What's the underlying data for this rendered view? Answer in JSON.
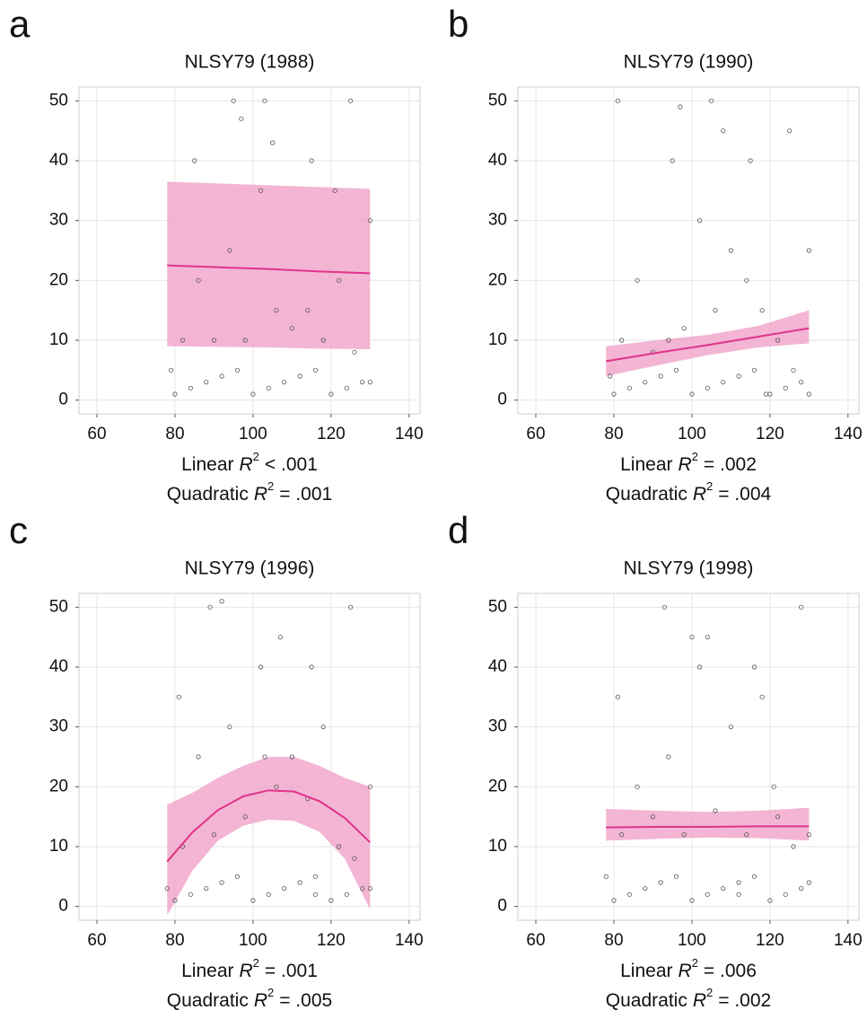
{
  "chart_data": [
    {
      "type": "scatter",
      "panel_label": "a",
      "title": "NLSY79 (1988)",
      "x": [
        80,
        84,
        88,
        92,
        96,
        100,
        104,
        108,
        112,
        116,
        120,
        124,
        128,
        82,
        90,
        98,
        106,
        114,
        122,
        130,
        79,
        86,
        94,
        102,
        110,
        118,
        126,
        85,
        95,
        105,
        115,
        125,
        97,
        103,
        121,
        130
      ],
      "values": [
        1,
        2,
        3,
        4,
        5,
        1,
        2,
        3,
        4,
        5,
        1,
        2,
        3,
        10,
        10,
        10,
        15,
        15,
        20,
        30,
        5,
        20,
        25,
        35,
        12,
        10,
        8,
        40,
        50,
        43,
        40,
        50,
        47,
        50,
        35,
        3
      ],
      "point_color": "#555555",
      "fit": {
        "color": "#e0338a",
        "band_color": "#f0a3c8",
        "x": [
          78,
          91,
          104,
          117,
          130
        ],
        "y": [
          22.5,
          22.2,
          21.9,
          21.5,
          21.2
        ],
        "lower": [
          9,
          8.9,
          8.8,
          8.6,
          8.5
        ],
        "upper": [
          36.5,
          36.2,
          35.9,
          35.6,
          35.3
        ]
      },
      "xlim": [
        55.4,
        142.8
      ],
      "ylim": [
        -2.3,
        52.3
      ],
      "xticks": [
        60,
        80,
        100,
        120,
        140
      ],
      "yticks": [
        0,
        10,
        20,
        30,
        40,
        50
      ],
      "grid": true,
      "captions": [
        {
          "prefix": "Linear",
          "symbol": "R",
          "superscript": "2",
          "text": "< .001"
        },
        {
          "prefix": "Quadratic",
          "symbol": "R",
          "superscript": "2",
          "text": "= .001"
        }
      ]
    },
    {
      "type": "scatter",
      "panel_label": "b",
      "title": "NLSY79 (1990)",
      "x": [
        80,
        84,
        88,
        92,
        96,
        100,
        104,
        108,
        112,
        116,
        120,
        124,
        128,
        82,
        90,
        98,
        106,
        114,
        122,
        130,
        79,
        86,
        94,
        102,
        110,
        118,
        126,
        81,
        95,
        105,
        115,
        125,
        97,
        108,
        119,
        130
      ],
      "values": [
        1,
        2,
        3,
        4,
        5,
        1,
        2,
        3,
        4,
        5,
        1,
        2,
        3,
        10,
        8,
        12,
        15,
        20,
        10,
        25,
        4,
        20,
        10,
        30,
        25,
        15,
        5,
        50,
        40,
        50,
        40,
        45,
        49,
        45,
        1,
        1
      ],
      "point_color": "#555555",
      "fit": {
        "color": "#e0338a",
        "band_color": "#f0a3c8",
        "x": [
          78,
          91,
          104,
          117,
          130
        ],
        "y": [
          6.5,
          7.9,
          9.2,
          10.6,
          12
        ],
        "lower": [
          4,
          5.8,
          7.5,
          8.8,
          9.5
        ],
        "upper": [
          9,
          10,
          10.9,
          12.4,
          15
        ]
      },
      "xlim": [
        55.4,
        142.8
      ],
      "ylim": [
        -2.3,
        52.3
      ],
      "xticks": [
        60,
        80,
        100,
        120,
        140
      ],
      "yticks": [
        0,
        10,
        20,
        30,
        40,
        50
      ],
      "grid": true,
      "captions": [
        {
          "prefix": "Linear",
          "symbol": "R",
          "superscript": "2",
          "text": "= .002"
        },
        {
          "prefix": "Quadratic",
          "symbol": "R",
          "superscript": "2",
          "text": "= .004"
        }
      ]
    },
    {
      "type": "scatter",
      "panel_label": "c",
      "title": "NLSY79 (1996)",
      "x": [
        80,
        84,
        88,
        92,
        96,
        100,
        104,
        108,
        112,
        116,
        120,
        124,
        128,
        82,
        90,
        98,
        106,
        114,
        122,
        130,
        78,
        86,
        94,
        102,
        110,
        118,
        126,
        81,
        89,
        107,
        115,
        125,
        92,
        103,
        116,
        130
      ],
      "values": [
        1,
        2,
        3,
        4,
        5,
        1,
        2,
        3,
        4,
        5,
        1,
        2,
        3,
        10,
        12,
        15,
        20,
        18,
        10,
        20,
        3,
        25,
        30,
        40,
        25,
        30,
        8,
        35,
        50,
        45,
        40,
        50,
        51,
        25,
        2,
        3
      ],
      "point_color": "#555555",
      "fit": {
        "color": "#e0338a",
        "band_color": "#f0a3c8",
        "x": [
          78,
          84.5,
          91,
          97.5,
          104,
          110.5,
          117,
          123.5,
          130
        ],
        "y": [
          7.5,
          12.4,
          16.1,
          18.4,
          19.4,
          19.2,
          17.6,
          14.8,
          10.7
        ],
        "lower": [
          -1.5,
          6,
          11,
          13.5,
          14.5,
          14.3,
          12.5,
          8,
          -0.5
        ],
        "upper": [
          17,
          19,
          21.5,
          23.5,
          25,
          25,
          23.5,
          21.5,
          20
        ]
      },
      "xlim": [
        55.4,
        142.8
      ],
      "ylim": [
        -2.3,
        52.3
      ],
      "xticks": [
        60,
        80,
        100,
        120,
        140
      ],
      "yticks": [
        0,
        10,
        20,
        30,
        40,
        50
      ],
      "grid": true,
      "captions": [
        {
          "prefix": "Linear",
          "symbol": "R",
          "superscript": "2",
          "text": "= .001"
        },
        {
          "prefix": "Quadratic",
          "symbol": "R",
          "superscript": "2",
          "text": "= .005"
        }
      ]
    },
    {
      "type": "scatter",
      "panel_label": "d",
      "title": "NLSY79 (1998)",
      "x": [
        80,
        84,
        88,
        92,
        96,
        100,
        104,
        108,
        112,
        116,
        120,
        124,
        128,
        82,
        90,
        98,
        106,
        114,
        122,
        130,
        78,
        86,
        94,
        102,
        110,
        118,
        126,
        81,
        93,
        104,
        116,
        128,
        100,
        121,
        112,
        130
      ],
      "values": [
        1,
        2,
        3,
        4,
        5,
        1,
        2,
        3,
        4,
        5,
        1,
        2,
        3,
        12,
        15,
        12,
        16,
        12,
        15,
        12,
        5,
        20,
        25,
        40,
        30,
        35,
        10,
        35,
        50,
        45,
        40,
        50,
        45,
        20,
        2,
        4
      ],
      "point_color": "#555555",
      "fit": {
        "color": "#e0338a",
        "band_color": "#f0a3c8",
        "x": [
          78,
          91,
          104,
          117,
          130
        ],
        "y": [
          13.2,
          13.3,
          13.3,
          13.4,
          13.4
        ],
        "lower": [
          11,
          11.3,
          11.5,
          11.4,
          11
        ],
        "upper": [
          16.3,
          16,
          15.8,
          16,
          16.5
        ]
      },
      "xlim": [
        55.4,
        142.8
      ],
      "ylim": [
        -2.3,
        52.3
      ],
      "xticks": [
        60,
        80,
        100,
        120,
        140
      ],
      "yticks": [
        0,
        10,
        20,
        30,
        40,
        50
      ],
      "grid": true,
      "captions": [
        {
          "prefix": "Linear",
          "symbol": "R",
          "superscript": "2",
          "text": "= .006"
        },
        {
          "prefix": "Quadratic",
          "symbol": "R",
          "superscript": "2",
          "text": "= .002"
        }
      ]
    }
  ]
}
